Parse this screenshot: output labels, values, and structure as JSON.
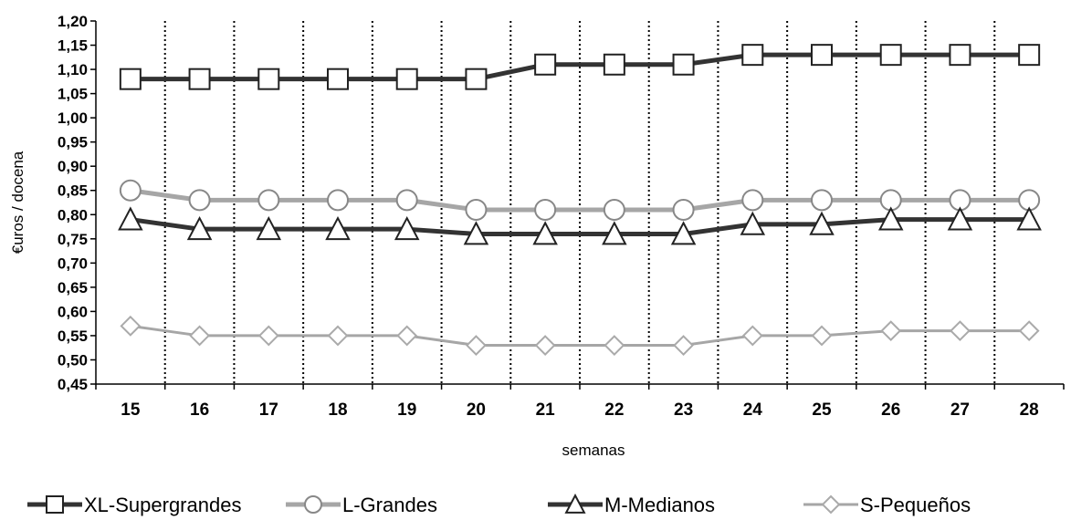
{
  "chart_data": {
    "type": "line",
    "xlabel": "semanas",
    "ylabel": "€uros / docena",
    "ylim": [
      0.45,
      1.2
    ],
    "yticks": [
      "1,20",
      "1,15",
      "1,10",
      "1,05",
      "1,00",
      "0,95",
      "0,90",
      "0,85",
      "0,80",
      "0,75",
      "0,70",
      "0,65",
      "0,60",
      "0,55",
      "0,50",
      "0,45"
    ],
    "categories": [
      "15",
      "16",
      "17",
      "18",
      "19",
      "20",
      "21",
      "22",
      "23",
      "24",
      "25",
      "26",
      "27",
      "28"
    ],
    "grid": "vertical dotted",
    "legend": "bottom",
    "series": [
      {
        "name": "XL-Supergrandes",
        "marker": "square",
        "color": "#333333",
        "values": [
          1.08,
          1.08,
          1.08,
          1.08,
          1.08,
          1.08,
          1.11,
          1.11,
          1.11,
          1.13,
          1.13,
          1.13,
          1.13,
          1.13
        ]
      },
      {
        "name": "L-Grandes",
        "marker": "circle",
        "color": "#a6a6a6",
        "values": [
          0.85,
          0.83,
          0.83,
          0.83,
          0.83,
          0.81,
          0.81,
          0.81,
          0.81,
          0.83,
          0.83,
          0.83,
          0.83,
          0.83
        ]
      },
      {
        "name": "M-Medianos",
        "marker": "triangle",
        "color": "#333333",
        "values": [
          0.79,
          0.77,
          0.77,
          0.77,
          0.77,
          0.76,
          0.76,
          0.76,
          0.76,
          0.78,
          0.78,
          0.79,
          0.79,
          0.79
        ]
      },
      {
        "name": "S-Pequeños",
        "marker": "diamond",
        "color": "#a6a6a6",
        "values": [
          0.57,
          0.55,
          0.55,
          0.55,
          0.55,
          0.53,
          0.53,
          0.53,
          0.53,
          0.55,
          0.55,
          0.56,
          0.56,
          0.56
        ]
      }
    ]
  }
}
